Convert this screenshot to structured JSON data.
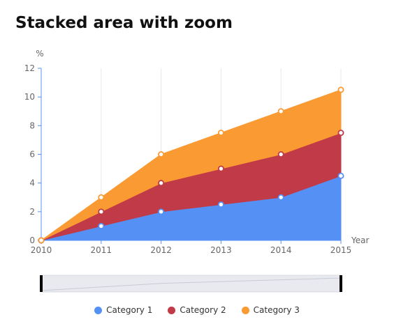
{
  "title": "Stacked area with zoom",
  "chart_data": {
    "type": "area",
    "stacked": true,
    "x": [
      "2010",
      "2011",
      "2012",
      "2013",
      "2014",
      "2015"
    ],
    "xlabel": "Year",
    "ylabel": "%",
    "ylim": [
      0,
      12
    ],
    "yticks": [
      "0",
      "2",
      "4",
      "6",
      "8",
      "10",
      "12"
    ],
    "grid": "vertical",
    "legend_position": "bottom",
    "series": [
      {
        "name": "Category 1",
        "color": "#5591f5",
        "values": [
          0,
          1,
          2,
          2.5,
          3,
          4.5
        ]
      },
      {
        "name": "Category 2",
        "color": "#c03a47",
        "values": [
          0,
          1,
          2,
          2.5,
          3,
          3
        ]
      },
      {
        "name": "Category 3",
        "color": "#fa9a32",
        "values": [
          0,
          1,
          2,
          2.5,
          3,
          3
        ]
      }
    ],
    "zoom_range": [
      0,
      1
    ]
  }
}
